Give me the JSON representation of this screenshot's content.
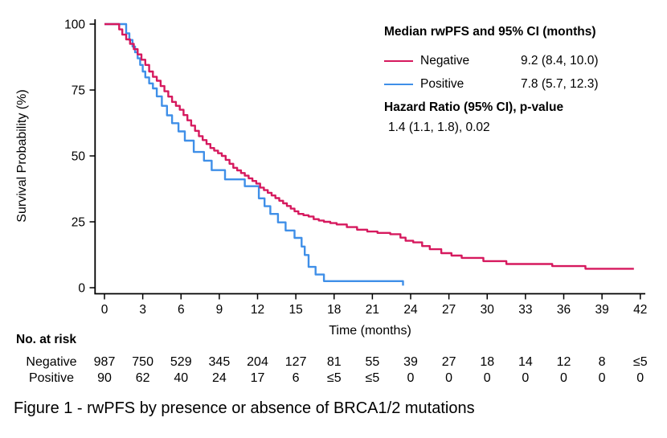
{
  "chart_data": {
    "type": "line",
    "subtype": "kaplan-meier-step",
    "title": "",
    "xlabel": "Time (months)",
    "ylabel": "Survival Probability (%)",
    "xlim": [
      0,
      42
    ],
    "ylim": [
      0,
      100
    ],
    "grid": false,
    "x_ticks": [
      0,
      3,
      6,
      9,
      12,
      15,
      18,
      21,
      24,
      27,
      30,
      33,
      36,
      39,
      42
    ],
    "y_ticks": [
      0,
      25,
      50,
      75,
      100
    ],
    "axis_color": "#000000",
    "legend_position": "top-right",
    "series": [
      {
        "name": "Negative",
        "color": "#D6195E",
        "median_ci": "9.2 (8.4, 10.0)",
        "steps": [
          [
            0,
            100
          ],
          [
            0.95,
            100
          ],
          [
            1.15,
            98
          ],
          [
            1.4,
            96
          ],
          [
            1.7,
            94.2
          ],
          [
            2.0,
            92.5
          ],
          [
            2.3,
            90.5
          ],
          [
            2.6,
            88.5
          ],
          [
            2.9,
            86.5
          ],
          [
            3.2,
            84.5
          ],
          [
            3.5,
            82
          ],
          [
            3.8,
            80
          ],
          [
            4.1,
            78.5
          ],
          [
            4.4,
            76.5
          ],
          [
            4.7,
            74.5
          ],
          [
            5.0,
            72.5
          ],
          [
            5.3,
            70.5
          ],
          [
            5.6,
            69
          ],
          [
            5.9,
            67.5
          ],
          [
            6.2,
            65.5
          ],
          [
            6.5,
            63.5
          ],
          [
            6.8,
            61.5
          ],
          [
            7.1,
            59.5
          ],
          [
            7.4,
            57.5
          ],
          [
            7.7,
            56
          ],
          [
            8.0,
            54.5
          ],
          [
            8.3,
            53
          ],
          [
            8.6,
            52
          ],
          [
            8.9,
            51
          ],
          [
            9.2,
            50
          ],
          [
            9.5,
            48.5
          ],
          [
            9.8,
            47
          ],
          [
            10.1,
            45.5
          ],
          [
            10.4,
            44.5
          ],
          [
            10.7,
            43.5
          ],
          [
            11.0,
            42.5
          ],
          [
            11.3,
            41.5
          ],
          [
            11.6,
            40.5
          ],
          [
            11.9,
            39.5
          ],
          [
            12.2,
            38
          ],
          [
            12.5,
            37
          ],
          [
            12.8,
            36
          ],
          [
            13.1,
            35
          ],
          [
            13.4,
            34
          ],
          [
            13.7,
            33
          ],
          [
            14.0,
            32
          ],
          [
            14.3,
            31
          ],
          [
            14.6,
            30
          ],
          [
            14.9,
            29
          ],
          [
            15.2,
            28
          ],
          [
            15.6,
            27.5
          ],
          [
            16.0,
            27
          ],
          [
            16.4,
            26
          ],
          [
            16.8,
            25.5
          ],
          [
            17.2,
            25
          ],
          [
            17.7,
            24.5
          ],
          [
            18.2,
            24
          ],
          [
            19.0,
            23
          ],
          [
            19.8,
            22
          ],
          [
            20.6,
            21.3
          ],
          [
            21.4,
            20.8
          ],
          [
            22.4,
            20.3
          ],
          [
            23.2,
            19
          ],
          [
            23.6,
            17.8
          ],
          [
            24.2,
            17.2
          ],
          [
            24.9,
            15.8
          ],
          [
            25.5,
            14.6
          ],
          [
            26.4,
            13.1
          ],
          [
            27.2,
            12.2
          ],
          [
            28.0,
            11.3
          ],
          [
            29.7,
            10.1
          ],
          [
            31.5,
            9.0
          ],
          [
            35.1,
            8.2
          ],
          [
            37.7,
            7.2
          ],
          [
            41.5,
            7.2
          ]
        ]
      },
      {
        "name": "Positive",
        "color": "#3F8FE8",
        "median_ci": "7.8 (5.7, 12.3)",
        "steps": [
          [
            0,
            100
          ],
          [
            1.7,
            96.5
          ],
          [
            1.95,
            94
          ],
          [
            2.2,
            91.5
          ],
          [
            2.4,
            89.3
          ],
          [
            2.6,
            87
          ],
          [
            2.8,
            84.5
          ],
          [
            3.0,
            82
          ],
          [
            3.2,
            79.8
          ],
          [
            3.5,
            77.5
          ],
          [
            3.8,
            75.6
          ],
          [
            4.1,
            72.6
          ],
          [
            4.5,
            69
          ],
          [
            4.9,
            65.4
          ],
          [
            5.3,
            62.4
          ],
          [
            5.8,
            59.3
          ],
          [
            6.3,
            55.8
          ],
          [
            7.0,
            51.5
          ],
          [
            7.8,
            48.2
          ],
          [
            8.4,
            44.6
          ],
          [
            9.45,
            41.1
          ],
          [
            11.0,
            38.5
          ],
          [
            12.1,
            33.9
          ],
          [
            12.55,
            30.9
          ],
          [
            13.0,
            28
          ],
          [
            13.6,
            24.8
          ],
          [
            14.2,
            21.7
          ],
          [
            14.9,
            18.9
          ],
          [
            15.45,
            15.6
          ],
          [
            15.7,
            12.4
          ],
          [
            16.0,
            7.9
          ],
          [
            16.55,
            5.0
          ],
          [
            17.2,
            2.5
          ],
          [
            23.4,
            0.8
          ]
        ]
      }
    ],
    "legend": {
      "title": "Median rwPFS and 95% CI (months)",
      "hr_title": "Hazard Ratio (95% CI), p-value",
      "hr_value": "1.4 (1.1, 1.8), 0.02"
    },
    "risk_table": {
      "title": "No. at risk",
      "rows": [
        {
          "label": "Negative",
          "counts": [
            "987",
            "750",
            "529",
            "345",
            "204",
            "127",
            "81",
            "55",
            "39",
            "27",
            "18",
            "14",
            "12",
            "8",
            "≤5"
          ]
        },
        {
          "label": "Positive",
          "counts": [
            "90",
            "62",
            "40",
            "24",
            "17",
            "6",
            "≤5",
            "≤5",
            "0",
            "0",
            "0",
            "0",
            "0",
            "0",
            "0"
          ]
        }
      ]
    },
    "caption": "Figure 1 - rwPFS by presence or absence of BRCA1/2 mutations"
  }
}
